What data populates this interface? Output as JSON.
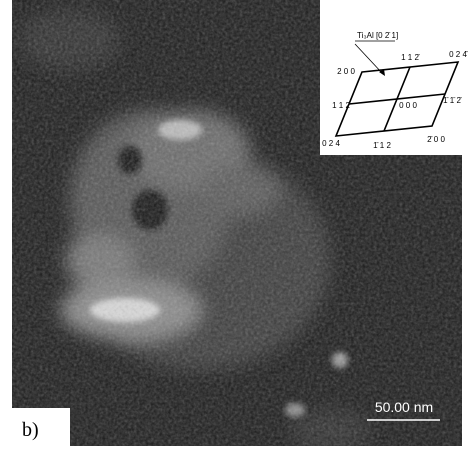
{
  "panel_label": "b)",
  "scale_bar": "50.00 nm",
  "inset": {
    "zone_axis": "Ti₃Al [0 2̄ 1]",
    "spots": [
      "0 2 4̄",
      "1 1 2̄",
      "2 0 0",
      "1 1 2",
      "0 0 0",
      "1̄ 1̄ 2̄",
      "2̄ 0 0",
      "0 2 4",
      "1̄ 1 2"
    ]
  }
}
